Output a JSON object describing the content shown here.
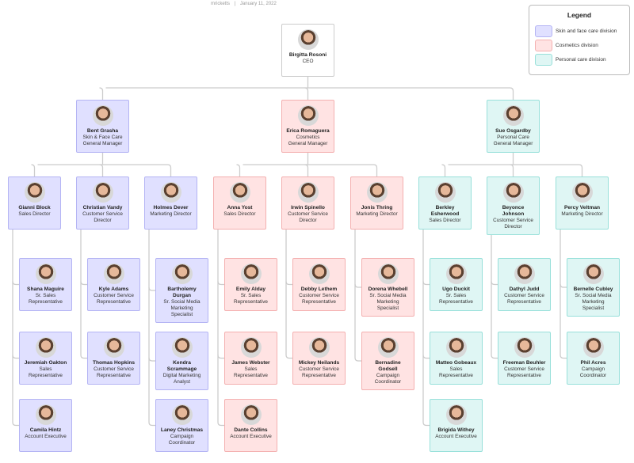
{
  "header": {
    "author": "mricketts",
    "separator": "|",
    "date": "January 11, 2022"
  },
  "legend": {
    "title": "Legend",
    "items": [
      {
        "label": "Skin and face care division",
        "fill": "#e0e0ff",
        "border": "#b4b4f4"
      },
      {
        "label": "Cosmetics division",
        "fill": "#ffe3e3",
        "border": "#f4b0b0"
      },
      {
        "label": "Personal care division",
        "fill": "#dff6f4",
        "border": "#98e0da"
      }
    ]
  },
  "colors": {
    "connector": "#cccccc"
  },
  "ceo": {
    "name": "Birgitta Rosoni",
    "title": "CEO"
  },
  "managers": [
    {
      "division": "skin",
      "name": "Bent Grasha",
      "title": "Skin & Face Care\nGeneral Manager",
      "directors": [
        {
          "name": "Gianni Block",
          "title": "Sales Director",
          "reports": [
            {
              "name": "Shana Maguire",
              "title": "Sr. Sales\nRepresentative"
            },
            {
              "name": "Jeremiah Oakton",
              "title": "Sales\nRepresentative"
            },
            {
              "name": "Camila Hintz",
              "title": "Account Executive"
            }
          ]
        },
        {
          "name": "Christian Vandy",
          "title": "Customer Service\nDirector",
          "reports": [
            {
              "name": "Kyle Adams",
              "title": "Customer Service\nRepresentative"
            },
            {
              "name": "Thomas Hopkins",
              "title": "Customer Service\nRepresentative"
            }
          ]
        },
        {
          "name": "Holmes Dever",
          "title": "Marketing Director",
          "reports": [
            {
              "name": "Bartholemy\nDurgan",
              "title": "Sr. Social Media\nMarketing\nSpecialist"
            },
            {
              "name": "Kendra\nScrammage",
              "title": "Digital Marketing\nAnalyst"
            },
            {
              "name": "Laney Christmas",
              "title": "Campaign\nCoordinator"
            }
          ]
        }
      ]
    },
    {
      "division": "cos",
      "name": "Erica Romaguera",
      "title": "Cosmetics\nGeneral Manager",
      "directors": [
        {
          "name": "Anna Yost",
          "title": "Sales Director",
          "reports": [
            {
              "name": "Emily Alday",
              "title": "Sr. Sales\nRepresentative"
            },
            {
              "name": "James Webster",
              "title": "Sales\nRepresentative"
            },
            {
              "name": "Dante Collins",
              "title": "Account Executive"
            }
          ]
        },
        {
          "name": "Irwin Spinello",
          "title": "Customer Service\nDirector",
          "reports": [
            {
              "name": "Debby Lethem",
              "title": "Customer Service\nRepresentative"
            },
            {
              "name": "Mickey Neilands",
              "title": "Customer Service\nRepresentative"
            }
          ]
        },
        {
          "name": "Jonis Thring",
          "title": "Marketing Director",
          "reports": [
            {
              "name": "Dorena Whebell",
              "title": "Sr. Social Media\nMarketing\nSpecialist"
            },
            {
              "name": "Bernadine\nGodsell",
              "title": "Campaign\nCoordinator"
            }
          ]
        }
      ]
    },
    {
      "division": "pers",
      "name": "Sue Osgardby",
      "title": "Personal Care\nGeneral Manager",
      "directors": [
        {
          "name": "Berkley\nEsherwood",
          "title": "Sales Director",
          "reports": [
            {
              "name": "Ugo Duckit",
              "title": "Sr. Sales\nRepresentative"
            },
            {
              "name": "Matteo Gobeaux",
              "title": "Sales\nRepresentative"
            },
            {
              "name": "Brigida Withey",
              "title": "Account Executive"
            }
          ]
        },
        {
          "name": "Beyonce\nJohnson",
          "title": "Customer Service\nDirector",
          "reports": [
            {
              "name": "Dathyl Judd",
              "title": "Customer Service\nRepresentative"
            },
            {
              "name": "Freeman Beuhler",
              "title": "Customer Service\nRepresentative"
            }
          ]
        },
        {
          "name": "Percy Veltman",
          "title": "Marketing Director",
          "reports": [
            {
              "name": "Bernelle Cubley",
              "title": "Sr. Social Media\nMarketing\nSpecialist"
            },
            {
              "name": "Phil Acres",
              "title": "Campaign\nCoordinator"
            }
          ]
        }
      ]
    }
  ]
}
